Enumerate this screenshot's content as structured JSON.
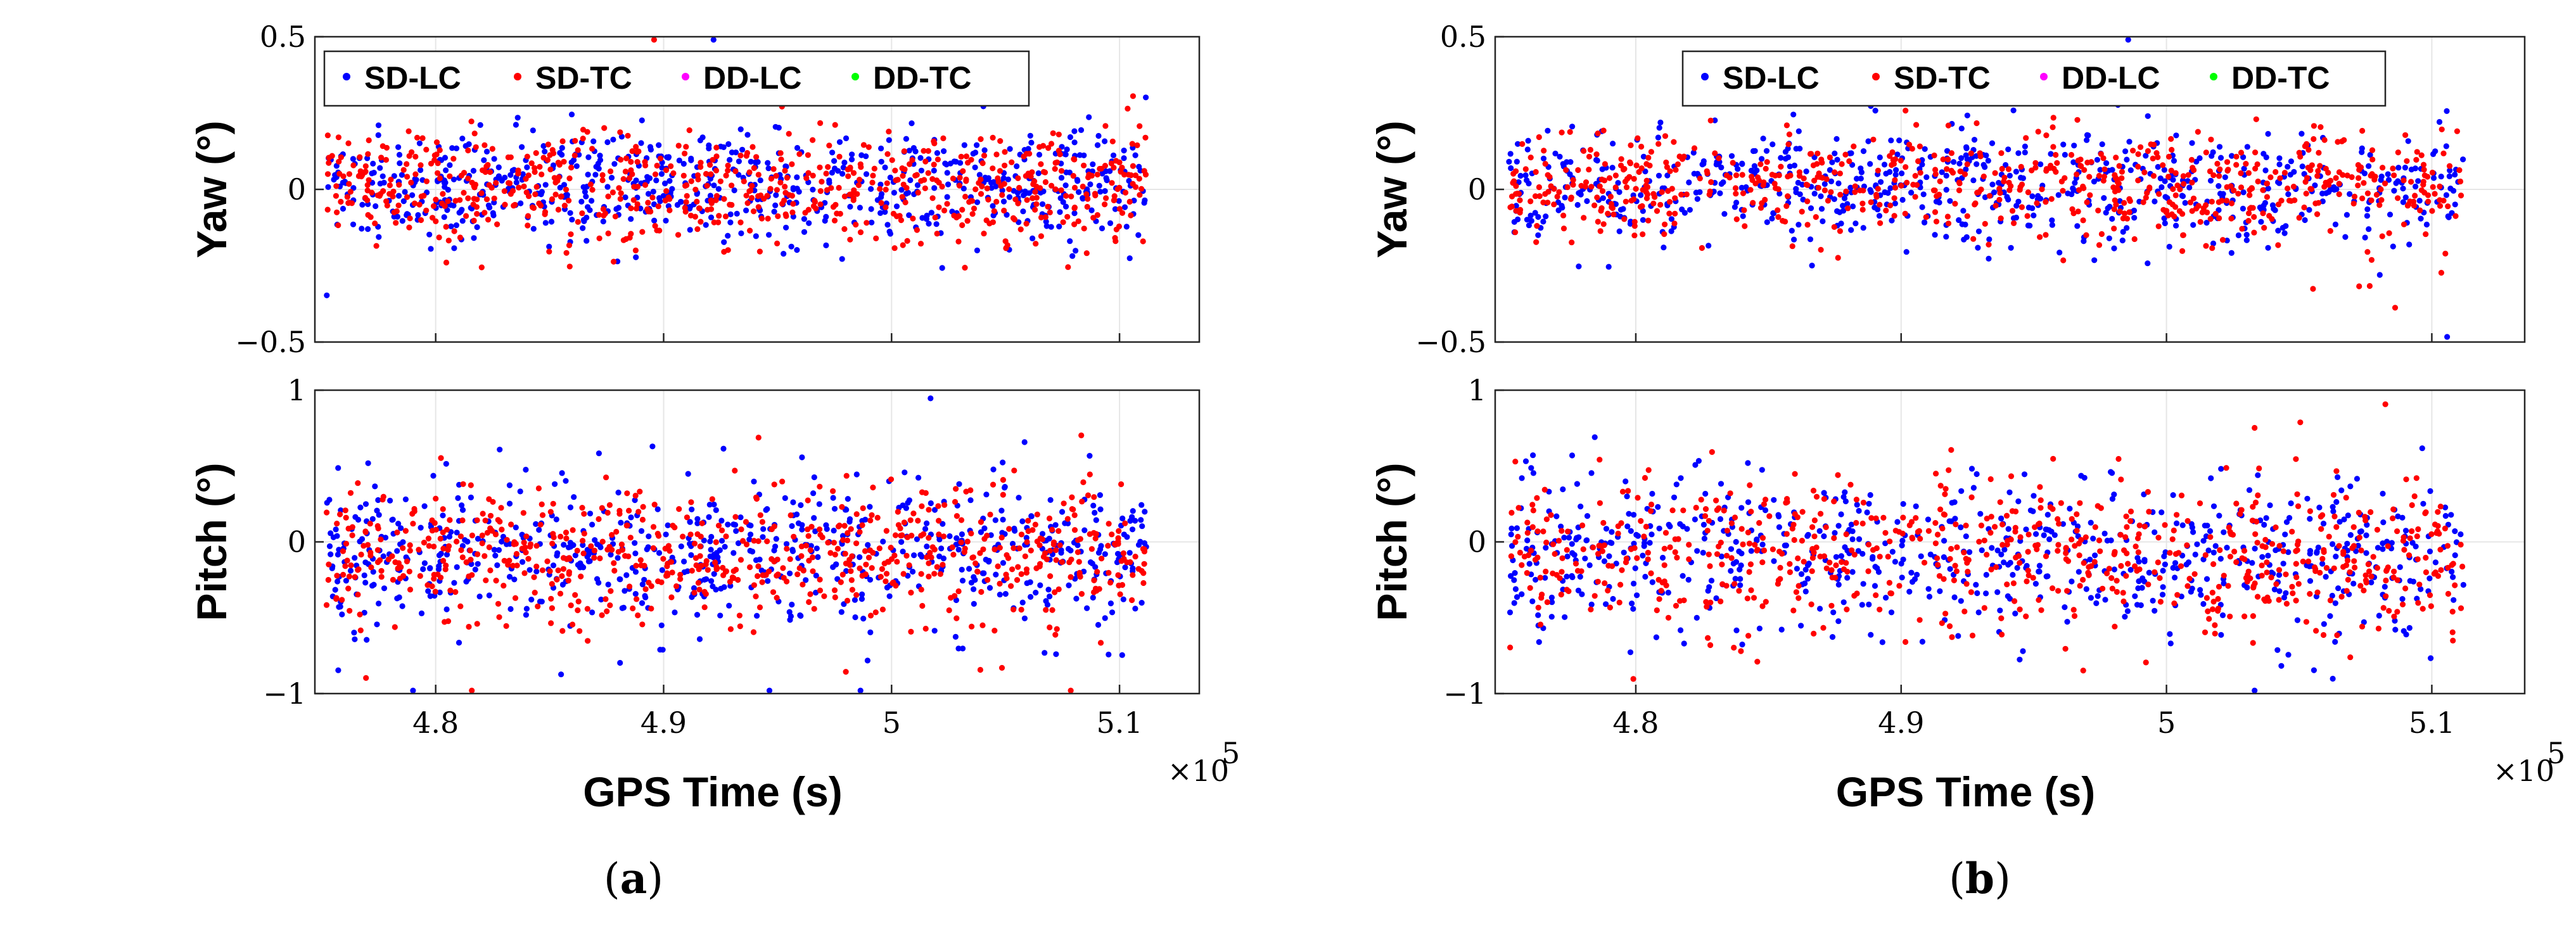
{
  "chart_data": [
    {
      "panel": "a",
      "caption": {
        "open": "(",
        "letter": "a",
        "close": ")"
      },
      "type": "scatter",
      "xlabel": "GPS Time (s)",
      "x_multiplier": "×10",
      "x_multiplier_exp": "5",
      "x_ticks": [
        4.8,
        4.9,
        5.0,
        5.1
      ],
      "x_tick_labels": [
        "4.8",
        "4.9",
        "5",
        "5.1"
      ],
      "xlim": [
        4.747,
        5.135
      ],
      "legend": [
        "SD-LC",
        "SD-TC",
        "DD-LC",
        "DD-TC"
      ],
      "legend_colors": [
        "#0000ff",
        "#ff0000",
        "#ff00ff",
        "#00ff00"
      ],
      "subplots": [
        {
          "name": "yaw",
          "ylabel": "Yaw (°)",
          "ylim": [
            -0.5,
            0.5
          ],
          "y_ticks": [
            -0.5,
            0,
            0.5
          ],
          "y_tick_labels": [
            "−0.5",
            "0",
            "0.5"
          ],
          "noise_sd": 0.09,
          "seed": 11
        },
        {
          "name": "pitch",
          "ylabel": "Pitch (°)",
          "ylim": [
            -1,
            1
          ],
          "y_ticks": [
            -1,
            0,
            1
          ],
          "y_tick_labels": [
            "−1",
            "0",
            "1"
          ],
          "noise_sd": 0.22,
          "seed": 23
        }
      ],
      "x_range": [
        4.752,
        5.112
      ],
      "points_per_series": 700
    },
    {
      "panel": "b",
      "caption": {
        "open": "(",
        "letter": "b",
        "close": ")"
      },
      "type": "scatter",
      "xlabel": "GPS Time (s)",
      "x_multiplier": "×10",
      "x_multiplier_exp": "5",
      "x_ticks": [
        4.8,
        4.9,
        5.0,
        5.1
      ],
      "x_tick_labels": [
        "4.8",
        "4.9",
        "5",
        "5.1"
      ],
      "xlim": [
        4.747,
        5.135
      ],
      "legend": [
        "SD-LC",
        "SD-TC",
        "DD-LC",
        "DD-TC"
      ],
      "legend_colors": [
        "#0000ff",
        "#ff0000",
        "#ff00ff",
        "#00ff00"
      ],
      "subplots": [
        {
          "name": "yaw",
          "ylabel": "Yaw (°)",
          "ylim": [
            -0.5,
            0.5
          ],
          "y_ticks": [
            -0.5,
            0,
            0.5
          ],
          "y_tick_labels": [
            "−0.5",
            "0",
            "0.5"
          ],
          "noise_sd": 0.09,
          "seed": 37
        },
        {
          "name": "pitch",
          "ylabel": "Pitch (°)",
          "ylim": [
            -1,
            1
          ],
          "y_ticks": [
            -1,
            0,
            1
          ],
          "y_tick_labels": [
            "−1",
            "0",
            "1"
          ],
          "noise_sd": 0.25,
          "seed": 53
        }
      ],
      "x_range": [
        4.752,
        5.112
      ],
      "points_per_series": 700
    }
  ]
}
